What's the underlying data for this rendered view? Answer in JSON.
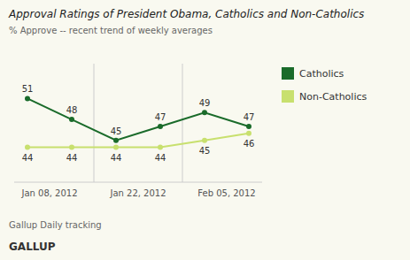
{
  "chart_data": {
    "type": "line",
    "title": "Approval Ratings of President Obama, Catholics and Non-Catholics",
    "subtitle": "% Approve -- recent trend of weekly averages",
    "annotations": [
      "Gallup Daily tracking",
      "GALLUP"
    ],
    "x": [
      0,
      1,
      2,
      3,
      4,
      5
    ],
    "xlim": [
      -0.3,
      5.3
    ],
    "xticks": [
      {
        "value": 0.5,
        "label": "Jan 08, 2012"
      },
      {
        "value": 2.5,
        "label": "Jan 22, 2012"
      },
      {
        "value": 4.5,
        "label": "Feb 05, 2012"
      }
    ],
    "ylim": [
      39,
      56
    ],
    "series": [
      {
        "name": "Catholics",
        "color": "#1a6b2a",
        "values": [
          51,
          48,
          45,
          47,
          49,
          47
        ]
      },
      {
        "name": "Non-Catholics",
        "color": "#c8e06e",
        "values": [
          44,
          44,
          44,
          44,
          45,
          46
        ]
      }
    ],
    "marker": "circle",
    "line_style": "solid",
    "grid": true,
    "legend": "right",
    "data_labels": true,
    "tick_labels": "x"
  }
}
